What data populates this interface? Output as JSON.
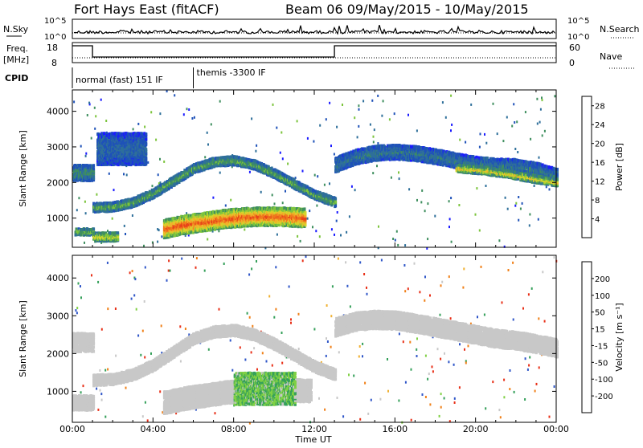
{
  "header": {
    "station": "Fort Hays East (fitACF)",
    "beam_dates": "Beam 06 09/May/2015 - 10/May/2015"
  },
  "panels": {
    "nsky": {
      "label": "N.Sky",
      "right_label": "N.Search",
      "left_ticks": [
        "10^5",
        "10^0"
      ],
      "right_ticks": [
        "10^5",
        "10^0"
      ]
    },
    "freq": {
      "label_line1": "Freq.",
      "label_line2": "[MHz]",
      "right_label": "Nave",
      "left_ticks": [
        "18",
        "8"
      ],
      "right_ticks": [
        "60",
        "0"
      ],
      "step_time_hours": [
        1.0,
        13.0
      ]
    },
    "cpid": {
      "label": "CPID",
      "modes": [
        {
          "start_hour": 0.0,
          "text": "normal (fast) 151 IF"
        },
        {
          "start_hour": 6.0,
          "text": "themis -3300 IF"
        }
      ]
    }
  },
  "chart_data": [
    {
      "type": "heatmap",
      "name": "power",
      "ylabel": "Slant Range [km]",
      "xlabel": "Time UT",
      "xlim": [
        0,
        24
      ],
      "ylim": [
        180,
        4600
      ],
      "y_ticks": [
        1000,
        2000,
        3000,
        4000
      ],
      "x_ticks": [
        "00:00",
        "04:00",
        "08:00",
        "12:00",
        "16:00",
        "20:00",
        "00:00"
      ],
      "colorbar": {
        "label": "Power [dB]",
        "ticks": [
          4,
          8,
          12,
          16,
          20,
          24,
          28
        ],
        "range": [
          0,
          30
        ],
        "colors": [
          "#1a1aff",
          "#1f52b8",
          "#2e6f9a",
          "#3f8f5f",
          "#7cc43d",
          "#d5d52b",
          "#f2b12a",
          "#ef7a1d",
          "#e8421a",
          "#d41616"
        ]
      },
      "bands": [
        {
          "hours": [
            0.0,
            1.0
          ],
          "range_km": [
            2050,
            2500
          ],
          "power_db": 8
        },
        {
          "hours": [
            0.1,
            1.0
          ],
          "range_km": [
            520,
            720
          ],
          "power_db": 11
        },
        {
          "hours": [
            1.0,
            13.0
          ],
          "range_km_centre": [
            1300,
            1320,
            1450,
            1700,
            2050,
            2400,
            2580,
            2620,
            2500,
            2250,
            1950,
            1650,
            1450
          ],
          "width_km": 260,
          "power_db": 10
        },
        {
          "hours": [
            1.0,
            2.2
          ],
          "range_km": [
            350,
            600
          ],
          "power_db": 14
        },
        {
          "hours": [
            1.2,
            3.6
          ],
          "range_km": [
            2500,
            3400
          ],
          "power_db": 5
        },
        {
          "hours": [
            4.5,
            11.5
          ],
          "range_km_centre": [
            700,
            820,
            900,
            980,
            1030,
            1050,
            1040,
            1010
          ],
          "width_km": 520,
          "power_db": 22
        },
        {
          "hours": [
            13.0,
            24.0
          ],
          "range_km_centre": [
            2500,
            2720,
            2830,
            2860,
            2820,
            2730,
            2620,
            2520,
            2470,
            2450,
            2350,
            2180
          ],
          "width_km": 420,
          "power_db": 6
        },
        {
          "hours": [
            19.0,
            24.0
          ],
          "range_km_centre": [
            2400,
            2350,
            2250,
            2120,
            2000
          ],
          "width_km": 220,
          "power_db": 15
        }
      ]
    },
    {
      "type": "heatmap",
      "name": "velocity",
      "ylabel": "Slant Range [km]",
      "xlabel": "Time UT",
      "xlim": [
        0,
        24
      ],
      "ylim": [
        180,
        4600
      ],
      "y_ticks": [
        1000,
        2000,
        3000,
        4000
      ],
      "x_ticks": [
        "00:00",
        "04:00",
        "08:00",
        "12:00",
        "16:00",
        "20:00",
        "00:00"
      ],
      "colorbar": {
        "label": "Velocity [m s⁻¹]",
        "ticks": [
          200,
          100,
          50,
          15,
          -15,
          -50,
          -100,
          -200
        ],
        "colors": [
          "#1f2fb0",
          "#2f56c8",
          "#35a05a",
          "#7fd044",
          "#c8c8c8",
          "#f0b030",
          "#f08018",
          "#e83018",
          "#d81010"
        ]
      },
      "bands": [
        {
          "hours": [
            0.0,
            1.0
          ],
          "range_km": [
            2050,
            2550
          ],
          "velocity": 0
        },
        {
          "hours": [
            0.0,
            1.0
          ],
          "range_km": [
            500,
            900
          ],
          "velocity": 0
        },
        {
          "hours": [
            1.0,
            13.0
          ],
          "range_km_centre": [
            1300,
            1320,
            1450,
            1700,
            2050,
            2400,
            2580,
            2620,
            2500,
            2250,
            1950,
            1650,
            1450
          ],
          "width_km": 300,
          "velocity": 0
        },
        {
          "hours": [
            4.5,
            11.8
          ],
          "range_km_centre": [
            700,
            820,
            900,
            980,
            1030,
            1050,
            1040,
            1010
          ],
          "width_km": 600,
          "velocity": 0
        },
        {
          "hours": [
            8.0,
            11.0
          ],
          "range_km": [
            650,
            1500
          ],
          "velocity": 30
        },
        {
          "hours": [
            13.0,
            24.0
          ],
          "range_km_centre": [
            2700,
            2850,
            2900,
            2880,
            2800,
            2700,
            2600,
            2500,
            2400,
            2350,
            2250,
            2150
          ],
          "width_km": 480,
          "velocity": 0
        }
      ]
    }
  ]
}
